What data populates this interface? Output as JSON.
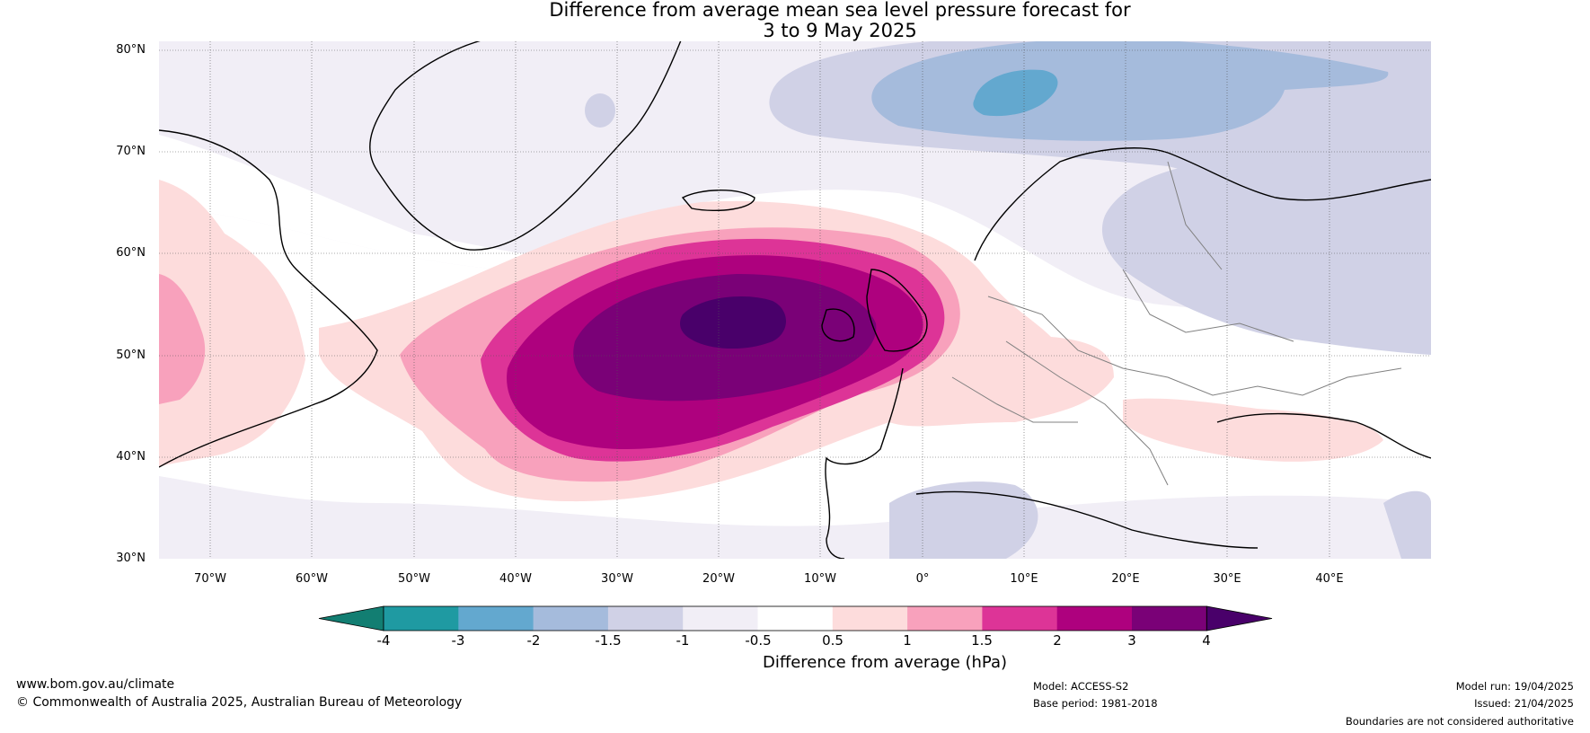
{
  "title": {
    "line1": "Difference from average mean sea level pressure forecast for",
    "line2": "3 to 9 May 2025"
  },
  "map": {
    "lat_labels": [
      "80°N",
      "70°N",
      "60°N",
      "50°N",
      "40°N",
      "30°N"
    ],
    "lon_labels": [
      "70°W",
      "60°W",
      "50°W",
      "40°W",
      "30°W",
      "20°W",
      "10°W",
      "0°",
      "10°E",
      "20°E",
      "30°E",
      "40°E"
    ]
  },
  "colorbar": {
    "label": "Difference from average (hPa)",
    "ticks": [
      "-4",
      "-3",
      "-2",
      "-1.5",
      "-1",
      "-0.5",
      "0.5",
      "1",
      "1.5",
      "2",
      "3",
      "4"
    ],
    "colors": [
      "#127e72",
      "#1f9aa2",
      "#63a8cf",
      "#a5bbdc",
      "#d0d1e6",
      "#f1eef6",
      "#ffffff",
      "#fddcdc",
      "#f8a1bc",
      "#dd3497",
      "#ae017e",
      "#7a0177",
      "#49006a"
    ]
  },
  "footer": {
    "website": "www.bom.gov.au/climate",
    "copyright": "© Commonwealth of Australia 2025, Australian Bureau of Meteorology",
    "model": "Model: ACCESS-S2",
    "base_period": "Base period: 1981-2018",
    "model_run": "Model run: 19/04/2025",
    "issued": "Issued: 21/04/2025",
    "disclaimer": "Boundaries are not considered authoritative"
  }
}
